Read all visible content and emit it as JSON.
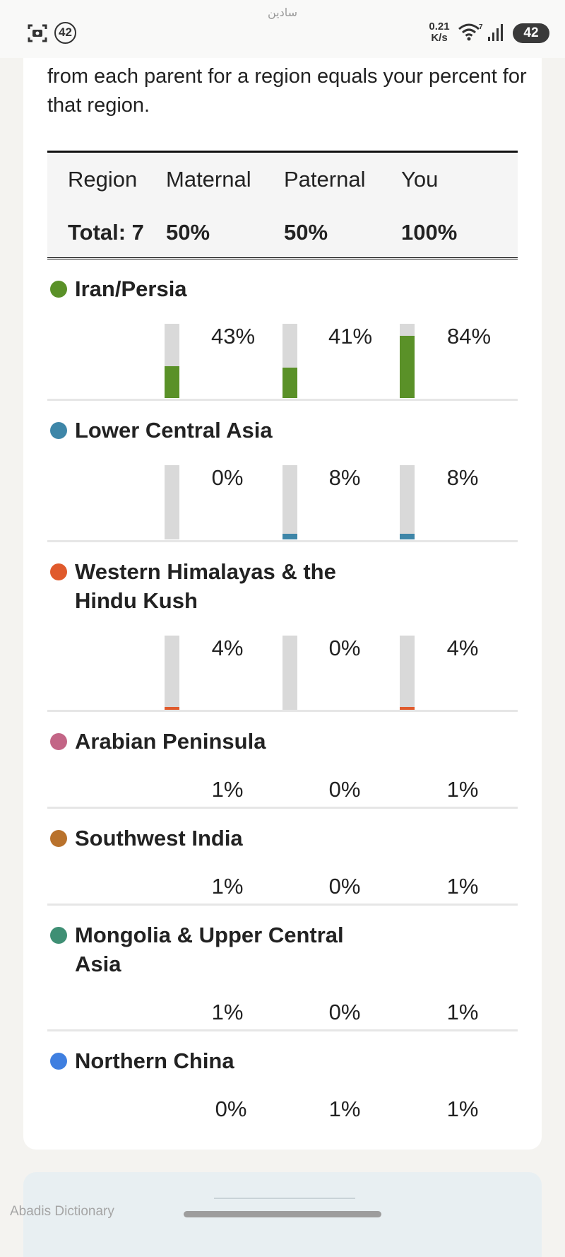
{
  "status_bar": {
    "app_label": "سادین",
    "notification_count": "42",
    "net_speed_value": "0.21",
    "net_speed_unit": "K/s",
    "wifi_superscript": "7",
    "battery": "42",
    "left_icon": "screenshot-icon"
  },
  "intro_text": "from each parent for a region equals your percent for that region.",
  "table": {
    "headers": {
      "region": "Region",
      "maternal": "Maternal",
      "paternal": "Paternal",
      "you": "You"
    },
    "totals": {
      "region": "Total: 7",
      "maternal": "50%",
      "paternal": "50%",
      "you": "100%"
    }
  },
  "regions": [
    {
      "name": "Iran/Persia",
      "color": "#5a9128",
      "maternal": "43%",
      "paternal": "41%",
      "you": "84%",
      "maternal_value": 43,
      "paternal_value": 41,
      "you_value": 84,
      "show_bars": true
    },
    {
      "name": "Lower Central Asia",
      "color": "#3e86a8",
      "maternal": "0%",
      "paternal": "8%",
      "you": "8%",
      "maternal_value": 0,
      "paternal_value": 8,
      "you_value": 8,
      "show_bars": true
    },
    {
      "name": "Western Himalayas & the Hindu Kush",
      "color": "#e05a2c",
      "maternal": "4%",
      "paternal": "0%",
      "you": "4%",
      "maternal_value": 4,
      "paternal_value": 0,
      "you_value": 4,
      "show_bars": true
    },
    {
      "name": "Arabian Peninsula",
      "color": "#c36586",
      "maternal": "1%",
      "paternal": "0%",
      "you": "1%",
      "show_bars": false
    },
    {
      "name": "Southwest India",
      "color": "#b9722c",
      "maternal": "1%",
      "paternal": "0%",
      "you": "1%",
      "show_bars": false
    },
    {
      "name": "Mongolia & Upper Central Asia",
      "color": "#3f8f74",
      "maternal": "1%",
      "paternal": "0%",
      "you": "1%",
      "show_bars": false
    },
    {
      "name": "Northern China",
      "color": "#3f7fe0",
      "maternal": "0%",
      "paternal": "1%",
      "you": "1%",
      "show_bars": false
    }
  ],
  "bottom_app_label": "Abadis Dictionary"
}
